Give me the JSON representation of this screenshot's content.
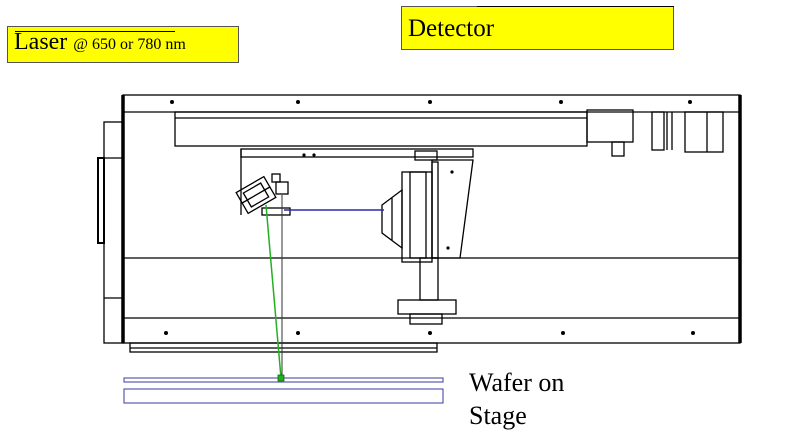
{
  "labels": {
    "laser_main": "Laser",
    "laser_sub": "@ 650 or 780 nm",
    "detector": "Detector",
    "wafer_line1": "Wafer on",
    "wafer_line2": "Stage"
  },
  "colors": {
    "label_fill": "#ffff00",
    "incident_beam": "#22b022",
    "reflected_beam": "#2a2aa8",
    "wafer_outline": "#5a5ab0"
  }
}
